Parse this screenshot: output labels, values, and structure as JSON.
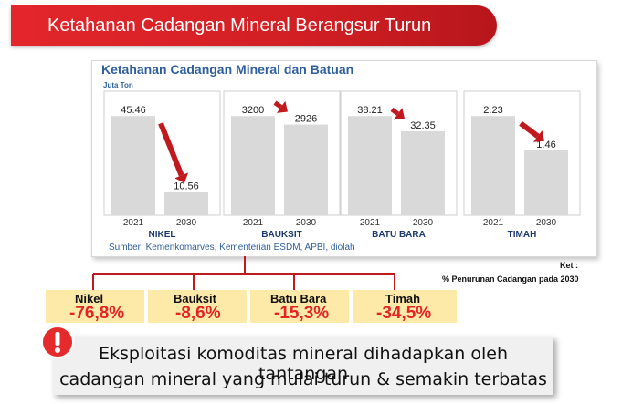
{
  "banner": {
    "title": "Ketahanan Cadangan Mineral Berangsur Turun"
  },
  "chart_data": {
    "type": "bar",
    "title": "Ketahanan Cadangan Mineral dan Batuan",
    "unit": "Juta Ton",
    "source": "Sumber: Kemenkomarves, Kementerian ESDM, APBI, diolah",
    "years": [
      "2021",
      "2030"
    ],
    "panels": [
      {
        "name": "NIKEL",
        "values": [
          45.46,
          10.56
        ],
        "labels": [
          "45.46",
          "10.56"
        ]
      },
      {
        "name": "BAUKSIT",
        "values": [
          3200,
          2926
        ],
        "labels": [
          "3200",
          "2926"
        ]
      },
      {
        "name": "BATU BARA",
        "values": [
          38.21,
          32.35
        ],
        "labels": [
          "38.21",
          "32.35"
        ]
      },
      {
        "name": "TIMAH",
        "values": [
          2.23,
          1.46
        ],
        "labels": [
          "2.23",
          "1.46"
        ]
      }
    ],
    "bar_color": "#d9d9d9",
    "arrow_color": "#c0191e",
    "title_color": "#2f5f9e"
  },
  "ket": {
    "title": "Ket :",
    "subtitle": "% Penurunan Cadangan pada 2030"
  },
  "decline": [
    {
      "name": "Nikel",
      "value": "-76,8%"
    },
    {
      "name": "Bauksit",
      "value": "-8,6%"
    },
    {
      "name": "Batu Bara",
      "value": "-15,3%"
    },
    {
      "name": "Timah",
      "value": "-34,5%"
    }
  ],
  "note": {
    "line1": "Eksploitasi komoditas mineral dihadapkan oleh tantangan",
    "line2": "cadangan mineral yang mulai turun & semakin terbatas"
  }
}
